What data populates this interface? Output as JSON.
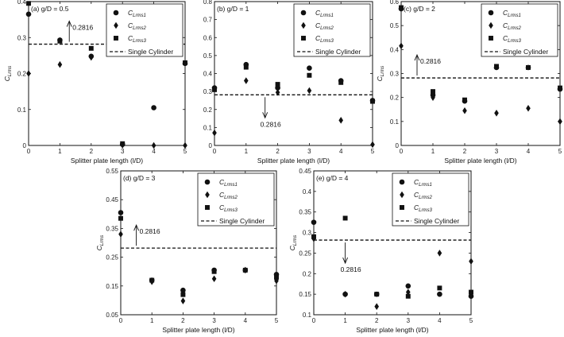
{
  "chart_data": [
    {
      "type": "scatter",
      "panel_label": "(a) g/D = 0.5",
      "xlabel": "Splitter plate length (l/D)",
      "ylabel": "C_Lrms",
      "xlim": [
        0,
        5
      ],
      "ylim": [
        0,
        0.4
      ],
      "xticks": [
        "0",
        "1",
        "2",
        "3",
        "4",
        "5"
      ],
      "yticks": [
        "0",
        "0.1",
        "0.2",
        "0.3",
        "0.4"
      ],
      "yticks_vals": [
        0,
        0.1,
        0.2,
        0.3,
        0.4
      ],
      "x": [
        0,
        1,
        2,
        3,
        4,
        5
      ],
      "series": [
        {
          "name": "C_Lrms1",
          "marker": "circle",
          "values": [
            0.365,
            0.293,
            0.248,
            0.003,
            0.105,
            0.228
          ]
        },
        {
          "name": "C_Lrms2",
          "marker": "diamond",
          "values": [
            0.2,
            0.225,
            0.245,
            0.001,
            0.0,
            0.0
          ]
        },
        {
          "name": "C_Lrms3",
          "marker": "square",
          "values": [
            0.395,
            0.29,
            0.27,
            0.005,
            null,
            0.23
          ]
        }
      ],
      "reference": {
        "name": "Single Cylinder",
        "value": 0.2816,
        "label": "0.2816",
        "arrow": "up",
        "arrow_x": 1.3
      },
      "legend": "top-right"
    },
    {
      "type": "scatter",
      "panel_label": "(b) g/D = 1",
      "xlabel": "Splitter plate length (l/D)",
      "ylabel": "",
      "xlim": [
        0,
        5
      ],
      "ylim": [
        0,
        0.8
      ],
      "xticks": [
        "0",
        "1",
        "2",
        "3",
        "4",
        "5"
      ],
      "yticks": [
        "0",
        "0.1",
        "0.2",
        "0.3",
        "0.4",
        "0.5",
        "0.6",
        "0.7",
        "0.8"
      ],
      "yticks_vals": [
        0,
        0.1,
        0.2,
        0.3,
        0.4,
        0.5,
        0.6,
        0.7,
        0.8
      ],
      "x": [
        0,
        1,
        2,
        3,
        4,
        5
      ],
      "series": [
        {
          "name": "C_Lrms1",
          "marker": "circle",
          "values": [
            0.32,
            0.45,
            0.32,
            0.43,
            0.36,
            0.25
          ]
        },
        {
          "name": "C_Lrms2",
          "marker": "diamond",
          "values": [
            0.07,
            0.36,
            0.295,
            0.305,
            0.14,
            0.005
          ]
        },
        {
          "name": "C_Lrms3",
          "marker": "square",
          "values": [
            0.31,
            0.435,
            0.34,
            0.39,
            0.35,
            0.245
          ]
        }
      ],
      "reference": {
        "name": "Single Cylinder",
        "value": 0.2816,
        "label": "0.2816",
        "arrow": "down",
        "arrow_x": 1.6
      },
      "legend": "top-right"
    },
    {
      "type": "scatter",
      "panel_label": "(c) g/D = 2",
      "xlabel": "Splitter plate length (l/D)",
      "ylabel": "C_Lrms",
      "xlim": [
        0,
        5
      ],
      "ylim": [
        0,
        0.6
      ],
      "xticks": [
        "0",
        "1",
        "2",
        "3",
        "4",
        "5"
      ],
      "yticks": [
        "0",
        "0.1",
        "0.2",
        "0.3",
        "0.4",
        "0.5",
        "0.6"
      ],
      "yticks_vals": [
        0,
        0.1,
        0.2,
        0.3,
        0.4,
        0.5,
        0.6
      ],
      "x": [
        0,
        1,
        2,
        3,
        4,
        5
      ],
      "series": [
        {
          "name": "C_Lrms1",
          "marker": "circle",
          "values": [
            0.57,
            0.21,
            0.185,
            0.325,
            0.325,
            0.235
          ]
        },
        {
          "name": "C_Lrms2",
          "marker": "diamond",
          "values": [
            0.415,
            0.2,
            0.145,
            0.135,
            0.155,
            0.1
          ]
        },
        {
          "name": "C_Lrms3",
          "marker": "square",
          "values": [
            0.575,
            0.225,
            0.19,
            0.33,
            0.325,
            0.24
          ]
        }
      ],
      "reference": {
        "name": "Single Cylinder",
        "value": 0.2816,
        "label": "0.2816",
        "arrow": "up",
        "arrow_x": 0.5
      },
      "legend": "top-right"
    },
    {
      "type": "scatter",
      "panel_label": "(d) g/D = 3",
      "xlabel": "Splitter plate length (l/D)",
      "ylabel": "C_Lrms",
      "xlim": [
        0,
        5
      ],
      "ylim": [
        0.05,
        0.55
      ],
      "xticks": [
        "0",
        "1",
        "2",
        "3",
        "4",
        "5"
      ],
      "yticks": [
        "0.05",
        "0.15",
        "0.25",
        "0.35",
        "0.45",
        "0.55"
      ],
      "yticks_vals": [
        0.05,
        0.15,
        0.25,
        0.35,
        0.45,
        0.55
      ],
      "x": [
        0,
        1,
        2,
        3,
        4,
        5
      ],
      "series": [
        {
          "name": "C_Lrms1",
          "marker": "circle",
          "values": [
            0.405,
            0.17,
            0.135,
            0.205,
            0.205,
            0.19
          ]
        },
        {
          "name": "C_Lrms2",
          "marker": "diamond",
          "values": [
            0.33,
            0.165,
            0.098,
            0.175,
            0.205,
            0.168
          ]
        },
        {
          "name": "C_Lrms3",
          "marker": "square",
          "values": [
            0.385,
            0.17,
            0.12,
            0.2,
            0.205,
            0.18
          ]
        }
      ],
      "reference": {
        "name": "Single Cylinder",
        "value": 0.2816,
        "label": "0.2816",
        "arrow": "up",
        "arrow_x": 0.5
      },
      "legend": "top-right"
    },
    {
      "type": "scatter",
      "panel_label": "(e) g/D = 4",
      "xlabel": "Splitter plate length (l/D)",
      "ylabel": "C_Lrms",
      "xlim": [
        0,
        5
      ],
      "ylim": [
        0.1,
        0.45
      ],
      "xticks": [
        "0",
        "1",
        "2",
        "3",
        "4",
        "5"
      ],
      "yticks": [
        "0.1",
        "0.15",
        "0.2",
        "0.25",
        "0.3",
        "0.35",
        "0.4",
        "0.45"
      ],
      "yticks_vals": [
        0.1,
        0.15,
        0.2,
        0.25,
        0.3,
        0.35,
        0.4,
        0.45
      ],
      "x": [
        0,
        1,
        2,
        3,
        4,
        5
      ],
      "series": [
        {
          "name": "C_Lrms1",
          "marker": "circle",
          "values": [
            0.325,
            0.15,
            0.15,
            0.17,
            0.15,
            0.145
          ]
        },
        {
          "name": "C_Lrms2",
          "marker": "diamond",
          "values": [
            0.285,
            0.15,
            0.12,
            0.155,
            0.25,
            0.23
          ]
        },
        {
          "name": "C_Lrms3",
          "marker": "square",
          "values": [
            0.29,
            0.335,
            0.15,
            0.145,
            0.165,
            0.155
          ]
        }
      ],
      "reference": {
        "name": "Single Cylinder",
        "value": 0.2816,
        "label": "0.2816",
        "arrow": "down",
        "arrow_x": 1.0
      },
      "legend": "top-right"
    }
  ]
}
